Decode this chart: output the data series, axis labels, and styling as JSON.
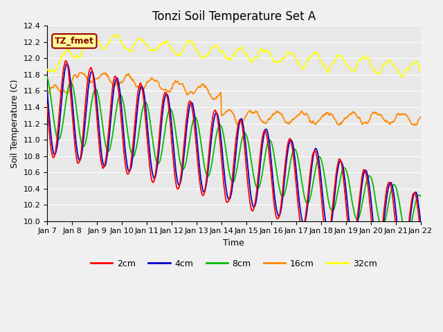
{
  "title": "Tonzi Soil Temperature Set A",
  "xlabel": "Time",
  "ylabel": "Soil Temperature (C)",
  "ylim": [
    10.0,
    12.4
  ],
  "x_tick_labels": [
    "Jan 7",
    "Jan 8",
    "Jan 9",
    "Jan 10",
    "Jan 11",
    "Jan 12",
    "Jan 13",
    "Jan 14",
    "Jan 15",
    "Jan 16",
    "Jan 17",
    "Jan 18",
    "Jan 19",
    "Jan 20",
    "Jan 21",
    "Jan 22"
  ],
  "legend_labels": [
    "2cm",
    "4cm",
    "8cm",
    "16cm",
    "32cm"
  ],
  "line_colors": [
    "#ff0000",
    "#0000cc",
    "#00bb00",
    "#ff8800",
    "#ffff00"
  ],
  "annotation_text": "TZ_fmet",
  "annotation_bg": "#ffff99",
  "annotation_border": "#990000",
  "plot_bg_color": "#e8e8e8",
  "fig_bg_color": "#f0f0f0",
  "grid_color": "#ffffff",
  "title_fontsize": 12,
  "label_fontsize": 9,
  "tick_fontsize": 8,
  "legend_fontsize": 9
}
